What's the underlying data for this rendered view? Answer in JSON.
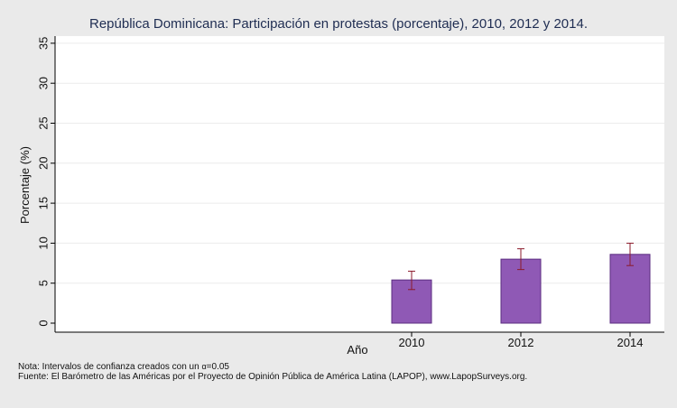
{
  "chart_data": {
    "type": "bar",
    "title": "República Dominicana: Participación en protestas (porcentaje), 2010, 2012 y 2014.",
    "xlabel": "Año",
    "ylabel": "Porcentaje (%)",
    "categories": [
      "2010",
      "2012",
      "2014"
    ],
    "values": [
      5.4,
      8.0,
      8.6
    ],
    "ci_lower": [
      4.2,
      6.7,
      7.2
    ],
    "ci_upper": [
      6.5,
      9.3,
      10.0
    ],
    "ylim": [
      0,
      35
    ],
    "yticks": [
      0,
      5,
      10,
      15,
      20,
      25,
      30,
      35
    ],
    "grid": true,
    "bar_color": "#8f59b5",
    "bar_edge_color": "#5b2d80",
    "errorbar_color": "#8b1a2b",
    "background_color": "#eaeaea",
    "plot_color": "#ffffff"
  },
  "footnotes": {
    "note_prefix": "Nota: Intervalos de confianza creados con un ",
    "note_symbol": "α",
    "note_suffix": "=0.05",
    "source": "Fuente: El Barómetro de las Américas por el Proyecto de Opinión Pública de América Latina (LAPOP), www.LapopSurveys.org."
  }
}
